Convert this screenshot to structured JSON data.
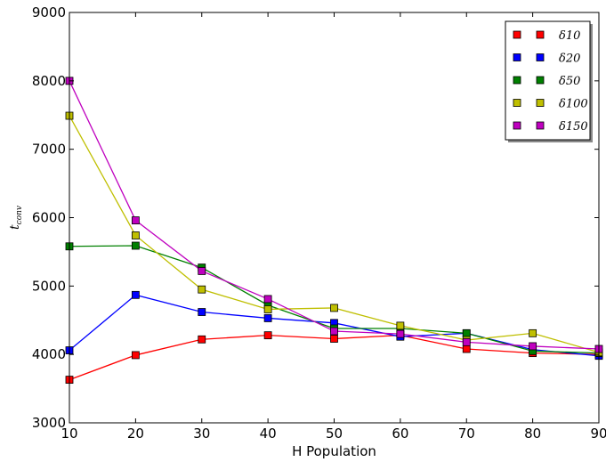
{
  "chart_data": {
    "type": "line",
    "xlabel": "H Population",
    "ylabel": "t",
    "ylabel_sub": "conv",
    "xlim": [
      10,
      90
    ],
    "ylim": [
      3000,
      9000
    ],
    "x_ticks": [
      10,
      20,
      30,
      40,
      50,
      60,
      70,
      80,
      90
    ],
    "y_ticks": [
      3000,
      4000,
      5000,
      6000,
      7000,
      8000,
      9000
    ],
    "x": [
      10,
      20,
      30,
      40,
      50,
      60,
      70,
      80,
      90
    ],
    "legend_position": "top-right",
    "grid": false,
    "marker": "square",
    "series": [
      {
        "name": "δ10",
        "color": "#ff0000",
        "values": [
          3630,
          3990,
          4220,
          4280,
          4230,
          4280,
          4080,
          4020,
          4000
        ]
      },
      {
        "name": "δ20",
        "color": "#0000ff",
        "values": [
          4060,
          4870,
          4620,
          4530,
          4460,
          4260,
          4310,
          4070,
          3980
        ]
      },
      {
        "name": "δ50",
        "color": "#008000",
        "values": [
          5580,
          5590,
          5270,
          4720,
          4380,
          4380,
          4310,
          4050,
          4020
        ]
      },
      {
        "name": "δ100",
        "color": "#bfbf00",
        "values": [
          7490,
          5740,
          4950,
          4660,
          4680,
          4420,
          4210,
          4310,
          4030
        ]
      },
      {
        "name": "δ150",
        "color": "#bf00bf",
        "values": [
          8000,
          5960,
          5220,
          4810,
          4340,
          4300,
          4180,
          4120,
          4080
        ]
      }
    ]
  }
}
